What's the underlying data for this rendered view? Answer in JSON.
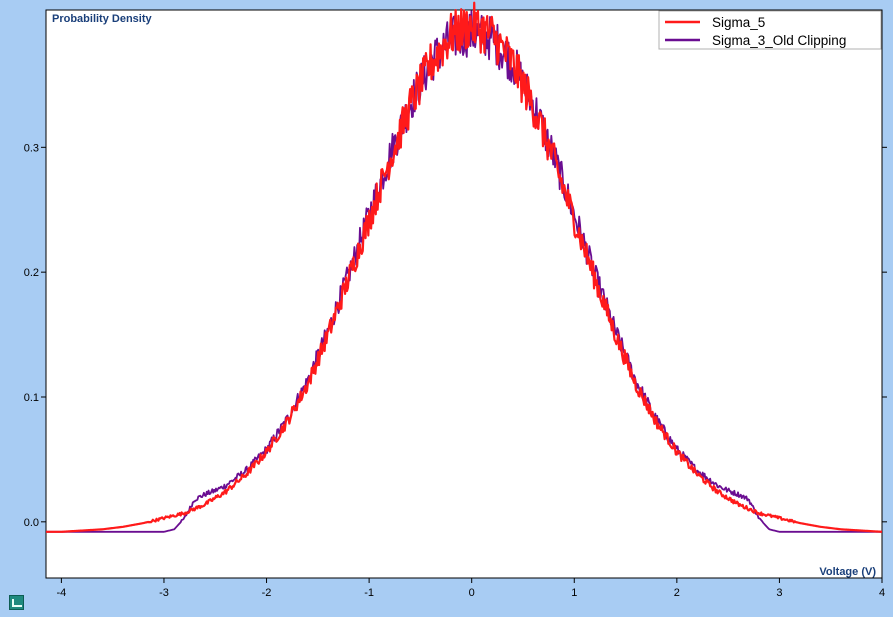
{
  "chart_data": {
    "type": "line",
    "xlabel": "Voltage (V)",
    "ylabel": "Probability Density",
    "xlim": [
      -4.15,
      4.0
    ],
    "ylim": [
      -0.045,
      0.41
    ],
    "x_ticks": [
      -4,
      -3,
      -2,
      -1,
      0,
      1,
      2,
      3,
      4
    ],
    "y_ticks": [
      0.0,
      0.1,
      0.2,
      0.3
    ],
    "y_tick_labels": [
      "0.0",
      "0.1",
      "0.2",
      "0.3"
    ],
    "grid": false,
    "legend_position": "top-right",
    "series": [
      {
        "name": "Sigma_5",
        "color": "#ff1a1a",
        "x": [
          -4.15,
          -4.0,
          -3.8,
          -3.6,
          -3.4,
          -3.2,
          -3.0,
          -2.8,
          -2.6,
          -2.4,
          -2.2,
          -2.0,
          -1.8,
          -1.6,
          -1.4,
          -1.2,
          -1.0,
          -0.8,
          -0.6,
          -0.4,
          -0.2,
          0.0,
          0.2,
          0.4,
          0.6,
          0.8,
          1.0,
          1.2,
          1.4,
          1.6,
          1.8,
          2.0,
          2.2,
          2.4,
          2.6,
          2.8,
          3.0,
          3.2,
          3.4,
          3.6,
          3.8,
          4.0
        ],
        "y": [
          -0.008,
          -0.008,
          -0.007,
          -0.006,
          -0.004,
          -0.001,
          0.003,
          0.007,
          0.014,
          0.024,
          0.038,
          0.056,
          0.08,
          0.11,
          0.15,
          0.195,
          0.242,
          0.29,
          0.333,
          0.367,
          0.39,
          0.398,
          0.39,
          0.367,
          0.333,
          0.29,
          0.242,
          0.195,
          0.15,
          0.11,
          0.08,
          0.056,
          0.038,
          0.024,
          0.014,
          0.007,
          0.003,
          -0.001,
          -0.004,
          -0.006,
          -0.007,
          -0.008
        ]
      },
      {
        "name": "Sigma_3_Old Clipping",
        "color": "#6a0d91",
        "x": [
          -4.15,
          -4.0,
          -3.6,
          -3.2,
          -3.0,
          -2.9,
          -2.8,
          -2.7,
          -2.6,
          -2.5,
          -2.4,
          -2.2,
          -2.0,
          -1.8,
          -1.6,
          -1.4,
          -1.2,
          -1.0,
          -0.8,
          -0.6,
          -0.4,
          -0.2,
          0.0,
          0.2,
          0.4,
          0.6,
          0.8,
          1.0,
          1.2,
          1.4,
          1.6,
          1.8,
          2.0,
          2.2,
          2.4,
          2.5,
          2.6,
          2.7,
          2.8,
          2.9,
          3.0,
          3.2,
          3.6,
          4.0
        ],
        "y": [
          -0.008,
          -0.008,
          -0.008,
          -0.008,
          -0.008,
          -0.006,
          0.003,
          0.018,
          0.022,
          0.025,
          0.029,
          0.041,
          0.058,
          0.082,
          0.113,
          0.153,
          0.198,
          0.246,
          0.293,
          0.335,
          0.368,
          0.387,
          0.392,
          0.387,
          0.368,
          0.335,
          0.293,
          0.246,
          0.198,
          0.153,
          0.113,
          0.082,
          0.058,
          0.041,
          0.029,
          0.025,
          0.022,
          0.018,
          0.003,
          -0.006,
          -0.008,
          -0.008,
          -0.008,
          -0.008
        ]
      }
    ]
  }
}
